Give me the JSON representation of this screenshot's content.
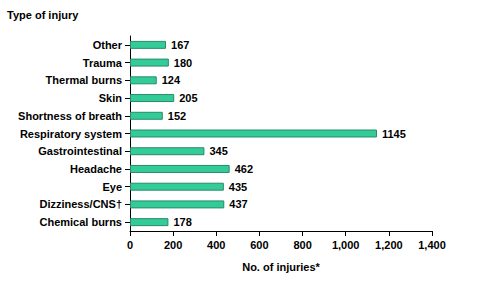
{
  "chart_data": {
    "type": "bar",
    "orientation": "horizontal",
    "x_label": "No. of injuries*",
    "y_label": "Type of injury",
    "categories": [
      "Other",
      "Trauma",
      "Thermal burns",
      "Skin",
      "Shortness of breath",
      "Respiratory system",
      "Gastrointestinal",
      "Headache",
      "Eye",
      "Dizziness/CNS†",
      "Chemical burns"
    ],
    "values": [
      167,
      180,
      124,
      205,
      152,
      1145,
      345,
      462,
      435,
      437,
      178
    ],
    "color": "#33cc99",
    "xlim": [
      0,
      1400
    ],
    "xticks": [
      0,
      200,
      400,
      600,
      800,
      1000,
      1200,
      1400
    ],
    "grid": false,
    "data_labels": true
  }
}
